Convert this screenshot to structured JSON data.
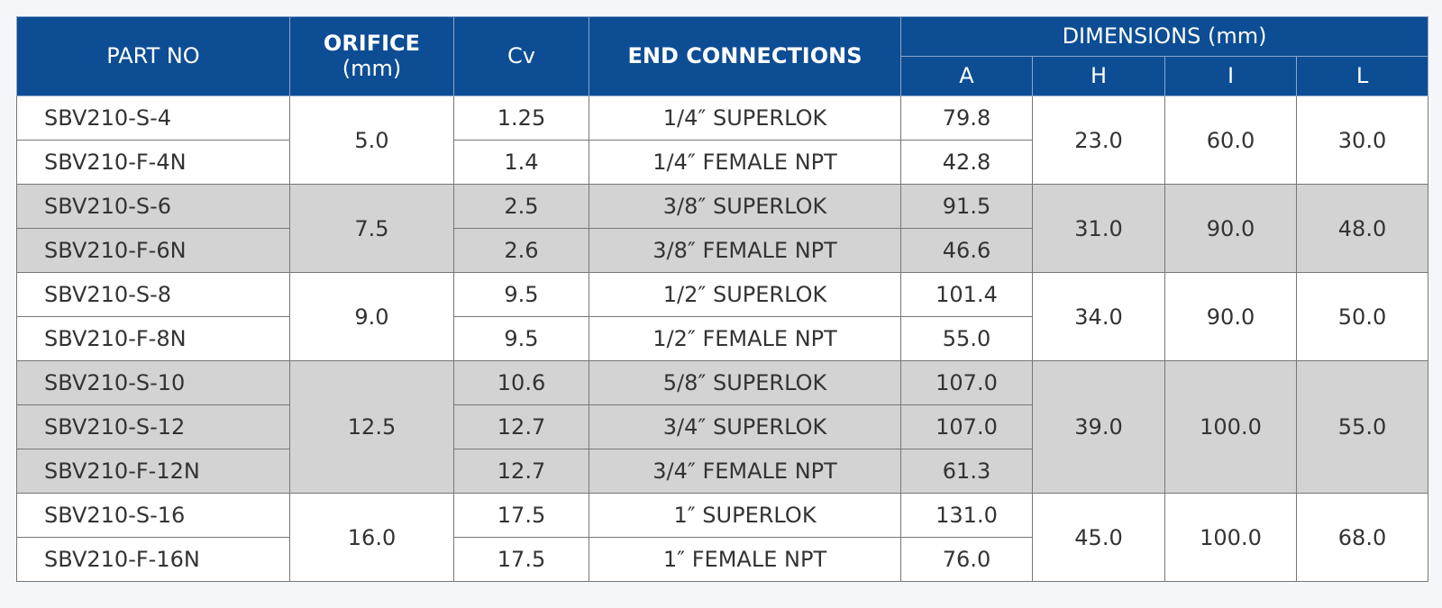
{
  "header": {
    "part_no": "PART NO",
    "orifice": "ORIFICE",
    "orifice_unit": "(mm)",
    "cv": "Cv",
    "end_connections": "END CONNECTIONS",
    "dimensions": "DIMENSIONS (mm)",
    "dims": [
      "A",
      "H",
      "I",
      "L"
    ]
  },
  "groups": [
    {
      "orifice": "5.0",
      "H": "23.0",
      "I": "60.0",
      "L": "30.0",
      "rows": [
        [
          "SBV210-S-4",
          "1.25",
          "1/4″ SUPERLOK",
          "79.8"
        ],
        [
          "SBV210-F-4N",
          "1.4",
          "1/4″ FEMALE NPT",
          "42.8"
        ]
      ]
    },
    {
      "orifice": "7.5",
      "H": "31.0",
      "I": "90.0",
      "L": "48.0",
      "rows": [
        [
          "SBV210-S-6",
          "2.5",
          "3/8″ SUPERLOK",
          "91.5"
        ],
        [
          "SBV210-F-6N",
          "2.6",
          "3/8″ FEMALE NPT",
          "46.6"
        ]
      ]
    },
    {
      "orifice": "9.0",
      "H": "34.0",
      "I": "90.0",
      "L": "50.0",
      "rows": [
        [
          "SBV210-S-8",
          "9.5",
          "1/2″ SUPERLOK",
          "101.4"
        ],
        [
          "SBV210-F-8N",
          "9.5",
          "1/2″ FEMALE NPT",
          "55.0"
        ]
      ]
    },
    {
      "orifice": "12.5",
      "H": "39.0",
      "I": "100.0",
      "L": "55.0",
      "rows": [
        [
          "SBV210-S-10",
          "10.6",
          "5/8″ SUPERLOK",
          "107.0"
        ],
        [
          "SBV210-S-12",
          "12.7",
          "3/4″ SUPERLOK",
          "107.0"
        ],
        [
          "SBV210-F-12N",
          "12.7",
          "3/4″ FEMALE NPT",
          "61.3"
        ]
      ]
    },
    {
      "orifice": "16.0",
      "H": "45.0",
      "I": "100.0",
      "L": "68.0",
      "rows": [
        [
          "SBV210-S-16",
          "17.5",
          "1″ SUPERLOK",
          "131.0"
        ],
        [
          "SBV210-F-16N",
          "17.5",
          "1″ FEMALE NPT",
          "76.0"
        ]
      ]
    }
  ]
}
